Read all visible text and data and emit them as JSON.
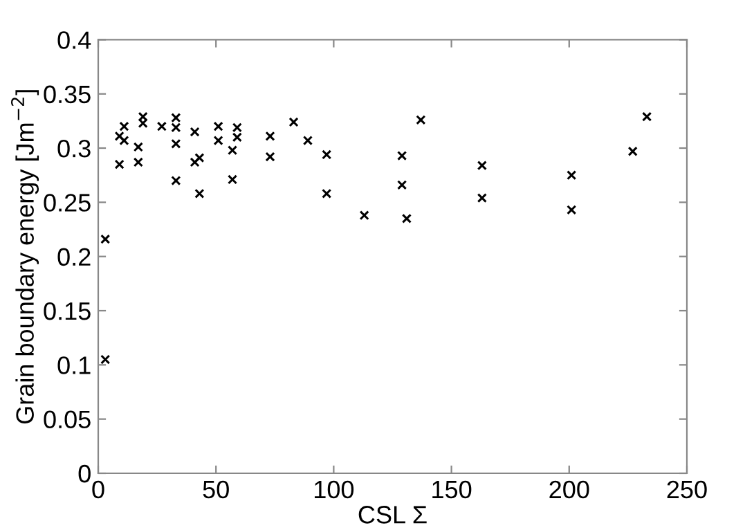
{
  "chart_data": {
    "type": "scatter",
    "xlabel": "CSL Σ",
    "ylabel": "Grain boundary energy [Jm$^{−2}$]",
    "x": [
      3,
      3,
      9,
      9,
      11,
      11,
      17,
      17,
      19,
      19,
      27,
      33,
      33,
      33,
      33,
      41,
      41,
      43,
      43,
      51,
      51,
      57,
      57,
      59,
      59,
      73,
      73,
      83,
      89,
      97,
      97,
      113,
      129,
      129,
      131,
      137,
      163,
      163,
      201,
      201,
      227,
      233
    ],
    "series": [
      {
        "color": "#000000",
        "values": [
          0.216,
          0.105,
          0.311,
          0.285,
          0.32,
          0.307,
          0.301,
          0.287,
          0.329,
          0.323,
          0.32,
          0.328,
          0.319,
          0.304,
          0.27,
          0.315,
          0.287,
          0.291,
          0.258,
          0.32,
          0.307,
          0.298,
          0.271,
          0.319,
          0.31,
          0.311,
          0.292,
          0.324,
          0.307,
          0.294,
          0.258,
          0.238,
          0.293,
          0.266,
          0.235,
          0.326,
          0.284,
          0.254,
          0.275,
          0.243,
          0.297,
          0.329
        ]
      }
    ],
    "marker": "cross",
    "xlim": [
      0,
      250
    ],
    "ylim": [
      0,
      0.4
    ],
    "xticks": [
      0,
      50,
      100,
      150,
      200,
      250
    ],
    "yticks": [
      0,
      0.05,
      0.1,
      0.15,
      0.2,
      0.25,
      0.3,
      0.35,
      0.4
    ],
    "grid": false
  }
}
